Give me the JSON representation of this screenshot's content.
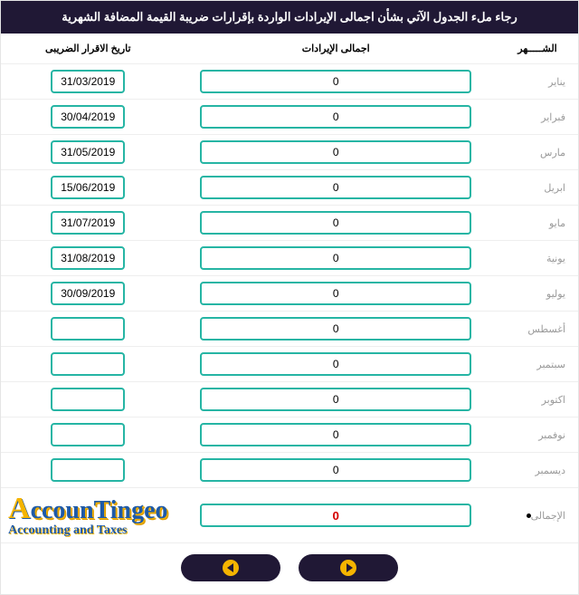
{
  "title": "رجاء ملء الجدول الآتي بشأن اجمالى الإيرادات الواردة بإقرارات ضريبة القيمة المضافة الشهرية",
  "headers": {
    "month": "الشـــــهر",
    "revenue": "اجمالى الإيرادات",
    "date": "تاريخ الاقرار الضريبى"
  },
  "rows": [
    {
      "month": "يناير",
      "revenue": "0",
      "date": "31/03/2019"
    },
    {
      "month": "فبراير",
      "revenue": "0",
      "date": "30/04/2019"
    },
    {
      "month": "مارس",
      "revenue": "0",
      "date": "31/05/2019"
    },
    {
      "month": "ابريل",
      "revenue": "0",
      "date": "15/06/2019"
    },
    {
      "month": "مايو",
      "revenue": "0",
      "date": "31/07/2019"
    },
    {
      "month": "يونية",
      "revenue": "0",
      "date": "31/08/2019"
    },
    {
      "month": "يوليو",
      "revenue": "0",
      "date": "30/09/2019"
    },
    {
      "month": "أغسطس",
      "revenue": "0",
      "date": ""
    },
    {
      "month": "سبتمبر",
      "revenue": "0",
      "date": ""
    },
    {
      "month": "اكتوبر",
      "revenue": "0",
      "date": ""
    },
    {
      "month": "نوفمبر",
      "revenue": "0",
      "date": ""
    },
    {
      "month": "ديسمبر",
      "revenue": "0",
      "date": ""
    }
  ],
  "total": {
    "label": "الإجمالى",
    "value": "0"
  },
  "logo": {
    "line1_cap": "A",
    "line1_rest": "ccounTingeo",
    "line2_cap": "A",
    "line2_rest": "ccounting and Taxes"
  },
  "colors": {
    "header_bg": "#201835",
    "header_fg": "#ffffff",
    "input_border": "#26b5a4",
    "total_text": "#d40000",
    "month_text": "#9a9a9a",
    "btn_bg": "#201835",
    "btn_circle": "#f5b400"
  }
}
